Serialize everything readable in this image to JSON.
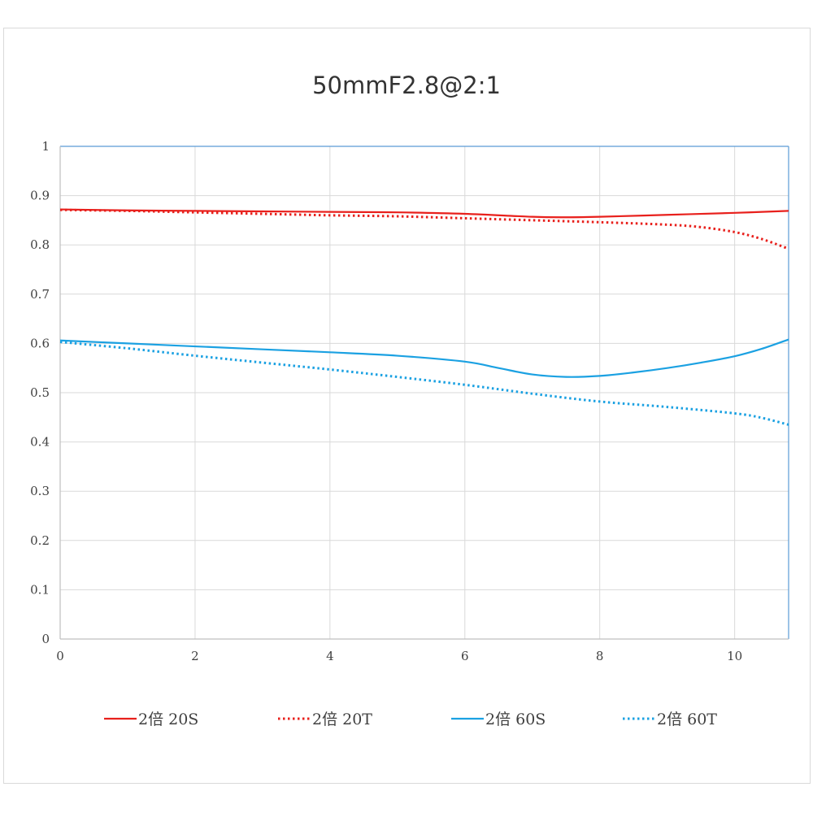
{
  "chart_data": {
    "type": "line",
    "title": "50mmF2.8@2:1",
    "xlabel": "",
    "ylabel": "",
    "xlim": [
      0,
      10.8
    ],
    "ylim": [
      0,
      1
    ],
    "x_ticks": [
      0,
      2,
      4,
      6,
      8,
      10
    ],
    "y_ticks": [
      0,
      0.1,
      0.2,
      0.3,
      0.4,
      0.5,
      0.6,
      0.7,
      0.8,
      0.9,
      1
    ],
    "grid": true,
    "legend_position": "bottom",
    "series": [
      {
        "name": "2倍 20S",
        "color": "#e8201c",
        "style": "solid",
        "x": [
          0,
          1,
          2,
          3,
          4,
          5,
          6,
          7,
          7.5,
          8,
          9,
          10,
          10.8
        ],
        "y": [
          0.872,
          0.87,
          0.869,
          0.868,
          0.867,
          0.866,
          0.863,
          0.857,
          0.856,
          0.857,
          0.861,
          0.865,
          0.869
        ]
      },
      {
        "name": "2倍 20T",
        "color": "#e8201c",
        "style": "dotted",
        "x": [
          0,
          1,
          2,
          3,
          4,
          5,
          6,
          7,
          8,
          9,
          9.5,
          10,
          10.4,
          10.8
        ],
        "y": [
          0.871,
          0.869,
          0.866,
          0.863,
          0.86,
          0.858,
          0.854,
          0.85,
          0.846,
          0.841,
          0.836,
          0.826,
          0.812,
          0.792
        ]
      },
      {
        "name": "2倍 60S",
        "color": "#1ba1e2",
        "style": "solid",
        "x": [
          0,
          1,
          2,
          3,
          4,
          5,
          6,
          6.5,
          7,
          7.5,
          8,
          8.5,
          9,
          9.5,
          10,
          10.4,
          10.8
        ],
        "y": [
          0.606,
          0.6,
          0.594,
          0.588,
          0.582,
          0.575,
          0.563,
          0.55,
          0.537,
          0.532,
          0.534,
          0.541,
          0.55,
          0.561,
          0.574,
          0.589,
          0.608
        ]
      },
      {
        "name": "2倍 60T",
        "color": "#1ba1e2",
        "style": "dotted",
        "x": [
          0,
          1,
          2,
          3,
          4,
          5,
          6,
          7,
          8,
          9,
          10,
          10.4,
          10.8
        ],
        "y": [
          0.603,
          0.59,
          0.575,
          0.561,
          0.547,
          0.532,
          0.516,
          0.498,
          0.482,
          0.471,
          0.458,
          0.449,
          0.435
        ]
      }
    ]
  }
}
